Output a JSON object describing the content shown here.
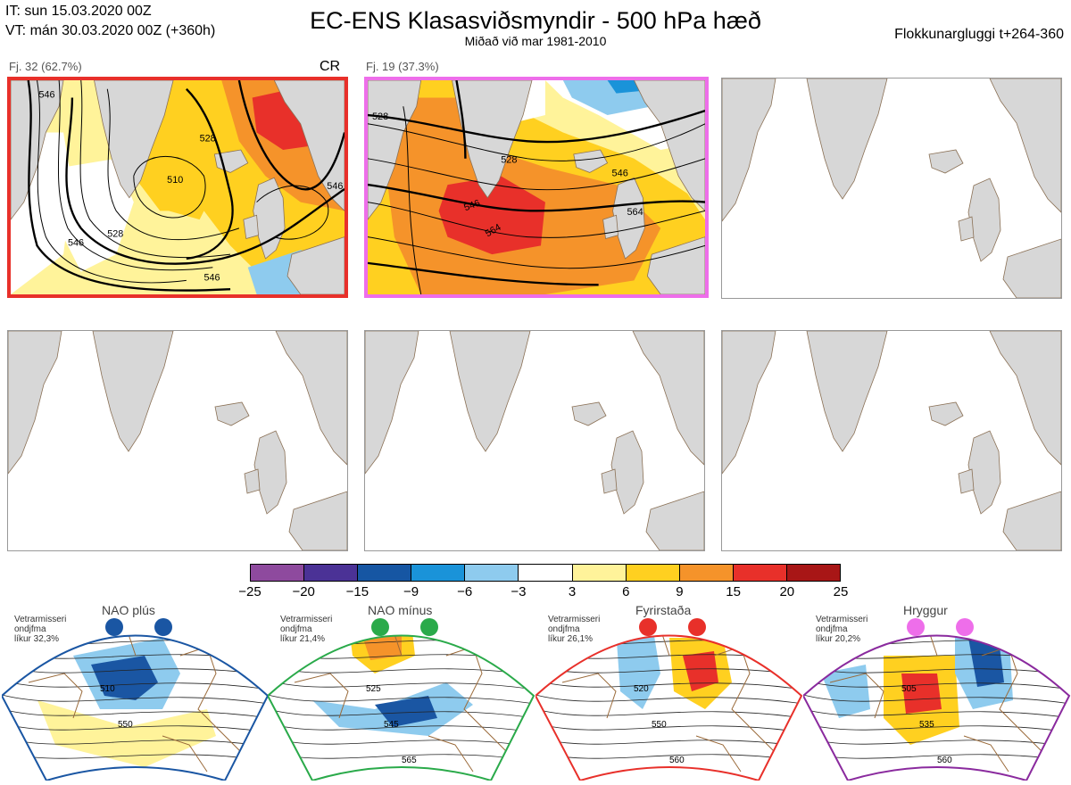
{
  "header": {
    "it_line": "IT: sun 15.03.2020 00Z",
    "vt_line": "VT: mán 30.03.2020 00Z  (+360h)",
    "title": "EC-ENS Klasasviðsmyndir - 500 hPa hæð",
    "subtitle": "Miðað við mar 1981-2010",
    "window": "Flokkunargluggi t+264-360"
  },
  "clusters": [
    {
      "label": "Fj. 32 (62.7%)",
      "regime_tag": "CR",
      "border_color": "#e8302a",
      "contours": [
        "546",
        "528",
        "510",
        "528",
        "546",
        "546",
        "546"
      ]
    },
    {
      "label": "Fj. 19 (37.3%)",
      "regime_tag": "",
      "border_color": "#ee6eea",
      "contours": [
        "528",
        "546",
        "564",
        "546",
        "528",
        "564"
      ]
    }
  ],
  "colorbar": {
    "colors": [
      "#8e4a9e",
      "#4b3296",
      "#1656a3",
      "#1a93d9",
      "#8ecbee",
      "#ffffff",
      "#fff39a",
      "#ffd020",
      "#f5932a",
      "#e8302a",
      "#a81616"
    ],
    "ticks": [
      "−25",
      "−20",
      "−15",
      "−9",
      "−6",
      "−3",
      "3",
      "6",
      "9",
      "15",
      "20",
      "25"
    ]
  },
  "regimes": [
    {
      "title": "NAO plús",
      "info": [
        "Vetrarmisseri",
        "ondjfma",
        "líkur 32,3%"
      ],
      "color": "#1a56a3",
      "contours": [
        "510",
        "550"
      ]
    },
    {
      "title": "NAO mínus",
      "info": [
        "Vetrarmisseri",
        "ondjfma",
        "líkur 21,4%"
      ],
      "color": "#2aaa4a",
      "contours": [
        "525",
        "545",
        "565"
      ]
    },
    {
      "title": "Fyrirstaða",
      "info": [
        "Vetrarmisseri",
        "ondjfma",
        "líkur 26,1%"
      ],
      "color": "#e8302a",
      "contours": [
        "520",
        "550",
        "560"
      ]
    },
    {
      "title": "Hryggur",
      "info": [
        "Vetrarmisseri",
        "ondjfma",
        "líkur 20,2%"
      ],
      "color": "#8a2a9e",
      "contours": [
        "505",
        "535",
        "560"
      ]
    }
  ]
}
